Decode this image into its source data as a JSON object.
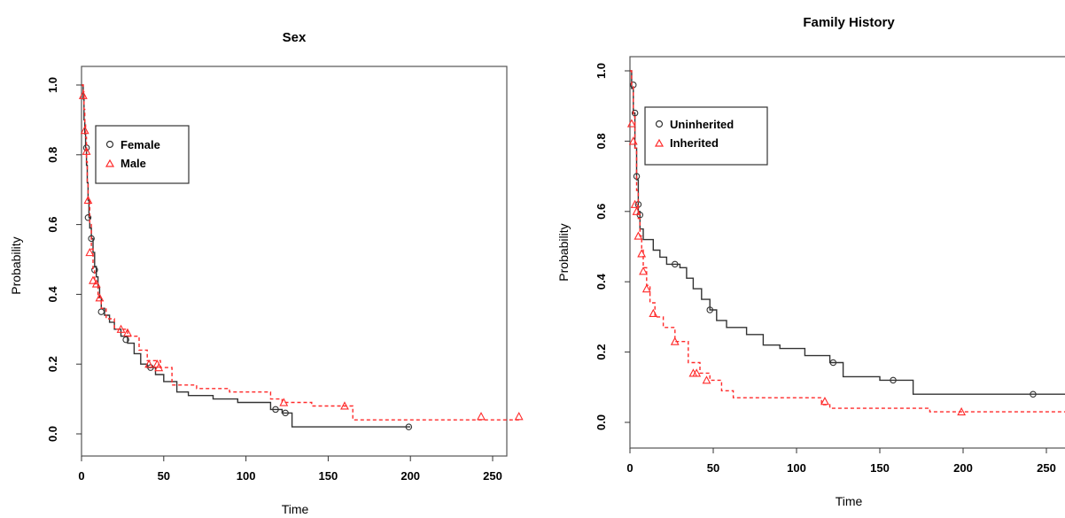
{
  "chart_data": [
    {
      "type": "line",
      "title": "Sex",
      "xlabel": "Time",
      "ylabel": "Probability",
      "xlim": [
        0,
        270
      ],
      "ylim": [
        0,
        1.0
      ],
      "xticks": [
        0,
        50,
        100,
        150,
        200,
        250
      ],
      "yticks": [
        0.0,
        0.2,
        0.4,
        0.6,
        0.8,
        1.0
      ],
      "legend": "top-left",
      "series": [
        {
          "name": "Female",
          "color": "#333333",
          "dash": "solid",
          "marker": "circle",
          "points": [
            [
              0,
              1.0
            ],
            [
              1,
              0.96
            ],
            [
              1.5,
              0.9
            ],
            [
              2,
              0.86
            ],
            [
              2.5,
              0.82
            ],
            [
              3,
              0.77
            ],
            [
              3.5,
              0.72
            ],
            [
              4,
              0.67
            ],
            [
              4.5,
              0.62
            ],
            [
              5,
              0.59
            ],
            [
              6,
              0.56
            ],
            [
              7,
              0.52
            ],
            [
              8,
              0.48
            ],
            [
              9,
              0.45
            ],
            [
              10,
              0.42
            ],
            [
              11,
              0.39
            ],
            [
              12,
              0.36
            ],
            [
              14,
              0.34
            ],
            [
              17,
              0.32
            ],
            [
              20,
              0.3
            ],
            [
              24,
              0.28
            ],
            [
              28,
              0.26
            ],
            [
              32,
              0.23
            ],
            [
              36,
              0.2
            ],
            [
              40,
              0.19
            ],
            [
              45,
              0.17
            ],
            [
              50,
              0.15
            ],
            [
              58,
              0.12
            ],
            [
              65,
              0.11
            ],
            [
              80,
              0.1
            ],
            [
              95,
              0.09
            ],
            [
              115,
              0.07
            ],
            [
              122,
              0.06
            ],
            [
              128,
              0.02
            ],
            [
              200,
              0.02
            ]
          ],
          "marks": [
            [
              3,
              0.82
            ],
            [
              4,
              0.62
            ],
            [
              6,
              0.56
            ],
            [
              8,
              0.47
            ],
            [
              12,
              0.35
            ],
            [
              27,
              0.27
            ],
            [
              42,
              0.19
            ],
            [
              118,
              0.07
            ],
            [
              124,
              0.06
            ],
            [
              199,
              0.02
            ]
          ]
        },
        {
          "name": "Male",
          "color": "#ff2a2a",
          "dash": "dashed",
          "marker": "triangle",
          "points": [
            [
              0,
              1.0
            ],
            [
              1,
              0.98
            ],
            [
              1.5,
              0.93
            ],
            [
              2,
              0.89
            ],
            [
              2.5,
              0.85
            ],
            [
              3,
              0.78
            ],
            [
              3.5,
              0.72
            ],
            [
              4,
              0.67
            ],
            [
              5,
              0.6
            ],
            [
              6,
              0.53
            ],
            [
              7,
              0.47
            ],
            [
              8,
              0.43
            ],
            [
              10,
              0.39
            ],
            [
              12,
              0.36
            ],
            [
              15,
              0.33
            ],
            [
              20,
              0.3
            ],
            [
              28,
              0.28
            ],
            [
              35,
              0.24
            ],
            [
              40,
              0.21
            ],
            [
              48,
              0.19
            ],
            [
              55,
              0.14
            ],
            [
              70,
              0.13
            ],
            [
              90,
              0.12
            ],
            [
              115,
              0.1
            ],
            [
              122,
              0.09
            ],
            [
              140,
              0.08
            ],
            [
              160,
              0.08
            ],
            [
              165,
              0.04
            ],
            [
              267,
              0.04
            ]
          ],
          "marks": [
            [
              1,
              0.97
            ],
            [
              2,
              0.87
            ],
            [
              3,
              0.81
            ],
            [
              4,
              0.67
            ],
            [
              5,
              0.52
            ],
            [
              7,
              0.44
            ],
            [
              9,
              0.43
            ],
            [
              11,
              0.39
            ],
            [
              24,
              0.3
            ],
            [
              28,
              0.29
            ],
            [
              41,
              0.2
            ],
            [
              46,
              0.2
            ],
            [
              47,
              0.19
            ],
            [
              123,
              0.09
            ],
            [
              160,
              0.08
            ],
            [
              243,
              0.05
            ],
            [
              266,
              0.05
            ]
          ]
        }
      ]
    },
    {
      "type": "line",
      "title": "Family History",
      "xlabel": "Time",
      "ylabel": "Probability",
      "xlim": [
        0,
        270
      ],
      "ylim": [
        0,
        1.0
      ],
      "xticks": [
        0,
        50,
        100,
        150,
        200,
        250
      ],
      "yticks": [
        0.0,
        0.2,
        0.4,
        0.6,
        0.8,
        1.0
      ],
      "legend": "top-left",
      "series": [
        {
          "name": "Uninherited",
          "color": "#333333",
          "dash": "solid",
          "marker": "circle",
          "points": [
            [
              0,
              1.0
            ],
            [
              1,
              0.95
            ],
            [
              2,
              0.88
            ],
            [
              3,
              0.78
            ],
            [
              4,
              0.69
            ],
            [
              5,
              0.6
            ],
            [
              6,
              0.55
            ],
            [
              8,
              0.52
            ],
            [
              14,
              0.49
            ],
            [
              18,
              0.47
            ],
            [
              22,
              0.45
            ],
            [
              30,
              0.44
            ],
            [
              34,
              0.41
            ],
            [
              38,
              0.38
            ],
            [
              43,
              0.35
            ],
            [
              48,
              0.32
            ],
            [
              52,
              0.29
            ],
            [
              58,
              0.27
            ],
            [
              70,
              0.25
            ],
            [
              80,
              0.22
            ],
            [
              90,
              0.21
            ],
            [
              105,
              0.19
            ],
            [
              120,
              0.17
            ],
            [
              128,
              0.13
            ],
            [
              150,
              0.12
            ],
            [
              170,
              0.08
            ],
            [
              267,
              0.08
            ]
          ],
          "marks": [
            [
              2,
              0.96
            ],
            [
              3,
              0.88
            ],
            [
              4,
              0.7
            ],
            [
              5,
              0.62
            ],
            [
              6,
              0.59
            ],
            [
              27,
              0.45
            ],
            [
              48,
              0.32
            ],
            [
              122,
              0.17
            ],
            [
              158,
              0.12
            ],
            [
              242,
              0.08
            ],
            [
              266,
              0.08
            ]
          ]
        },
        {
          "name": "Inherited",
          "color": "#ff2a2a",
          "dash": "dashed",
          "marker": "triangle",
          "points": [
            [
              0,
              1.0
            ],
            [
              1,
              0.96
            ],
            [
              2,
              0.87
            ],
            [
              3,
              0.78
            ],
            [
              4,
              0.66
            ],
            [
              5,
              0.58
            ],
            [
              6,
              0.53
            ],
            [
              7,
              0.49
            ],
            [
              8,
              0.44
            ],
            [
              10,
              0.39
            ],
            [
              12,
              0.34
            ],
            [
              15,
              0.3
            ],
            [
              20,
              0.27
            ],
            [
              27,
              0.23
            ],
            [
              35,
              0.17
            ],
            [
              42,
              0.14
            ],
            [
              48,
              0.12
            ],
            [
              55,
              0.09
            ],
            [
              62,
              0.07
            ],
            [
              100,
              0.07
            ],
            [
              115,
              0.05
            ],
            [
              120,
              0.04
            ],
            [
              180,
              0.03
            ],
            [
              267,
              0.03
            ]
          ],
          "marks": [
            [
              1,
              0.85
            ],
            [
              2,
              0.8
            ],
            [
              3,
              0.62
            ],
            [
              4,
              0.6
            ],
            [
              5,
              0.53
            ],
            [
              7,
              0.48
            ],
            [
              8,
              0.43
            ],
            [
              10,
              0.38
            ],
            [
              14,
              0.31
            ],
            [
              27,
              0.23
            ],
            [
              38,
              0.14
            ],
            [
              40,
              0.14
            ],
            [
              46,
              0.12
            ],
            [
              117,
              0.06
            ],
            [
              199,
              0.03
            ],
            [
              266,
              0.03
            ]
          ]
        }
      ]
    }
  ]
}
